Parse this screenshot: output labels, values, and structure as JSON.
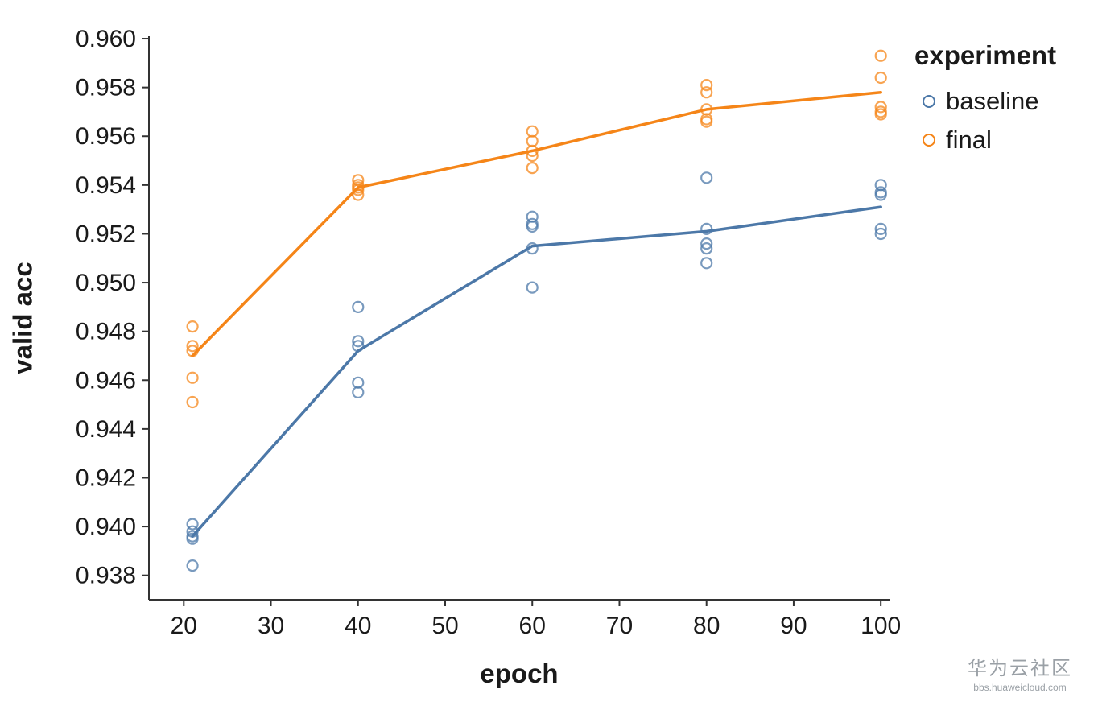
{
  "watermark": {
    "line1": "华为云社区",
    "line2": "bbs.huaweicloud.com"
  },
  "chart_data": {
    "type": "scatter",
    "title": "",
    "xlabel": "epoch",
    "ylabel": "valid acc",
    "xlim": [
      16,
      101
    ],
    "ylim": [
      0.937,
      0.9601
    ],
    "x_ticks": [
      20,
      30,
      40,
      50,
      60,
      70,
      80,
      90,
      100
    ],
    "y_ticks": [
      0.938,
      0.94,
      0.942,
      0.944,
      0.946,
      0.948,
      0.95,
      0.952,
      0.954,
      0.956,
      0.958,
      0.96
    ],
    "grid": false,
    "legend": {
      "title": "experiment",
      "position": "right",
      "entries": [
        "baseline",
        "final"
      ]
    },
    "series": [
      {
        "name": "baseline",
        "color": "#4c78a8",
        "marker": "open-circle",
        "points": [
          [
            21,
            0.9401
          ],
          [
            21,
            0.9398
          ],
          [
            21,
            0.9396
          ],
          [
            21,
            0.9395
          ],
          [
            21,
            0.9384
          ],
          [
            40,
            0.949
          ],
          [
            40,
            0.9476
          ],
          [
            40,
            0.9474
          ],
          [
            40,
            0.9459
          ],
          [
            40,
            0.9455
          ],
          [
            60,
            0.9527
          ],
          [
            60,
            0.9524
          ],
          [
            60,
            0.9523
          ],
          [
            60,
            0.9514
          ],
          [
            60,
            0.9498
          ],
          [
            80,
            0.9543
          ],
          [
            80,
            0.9522
          ],
          [
            80,
            0.9516
          ],
          [
            80,
            0.9514
          ],
          [
            80,
            0.9508
          ],
          [
            100,
            0.954
          ],
          [
            100,
            0.9537
          ],
          [
            100,
            0.9536
          ],
          [
            100,
            0.9522
          ],
          [
            100,
            0.952
          ]
        ],
        "mean_line": [
          [
            21,
            0.9396
          ],
          [
            40,
            0.9472
          ],
          [
            60,
            0.9515
          ],
          [
            80,
            0.9521
          ],
          [
            100,
            0.9531
          ]
        ]
      },
      {
        "name": "final",
        "color": "#f58518",
        "marker": "open-circle",
        "points": [
          [
            21,
            0.9482
          ],
          [
            21,
            0.9474
          ],
          [
            21,
            0.9472
          ],
          [
            21,
            0.9461
          ],
          [
            21,
            0.9451
          ],
          [
            40,
            0.9542
          ],
          [
            40,
            0.954
          ],
          [
            40,
            0.9539
          ],
          [
            40,
            0.9538
          ],
          [
            40,
            0.9536
          ],
          [
            60,
            0.9562
          ],
          [
            60,
            0.9558
          ],
          [
            60,
            0.9554
          ],
          [
            60,
            0.9552
          ],
          [
            60,
            0.9547
          ],
          [
            80,
            0.9581
          ],
          [
            80,
            0.9578
          ],
          [
            80,
            0.9571
          ],
          [
            80,
            0.9567
          ],
          [
            80,
            0.9566
          ],
          [
            100,
            0.9593
          ],
          [
            100,
            0.9584
          ],
          [
            100,
            0.9572
          ],
          [
            100,
            0.957
          ],
          [
            100,
            0.9569
          ]
        ],
        "mean_line": [
          [
            21,
            0.947
          ],
          [
            40,
            0.9539
          ],
          [
            60,
            0.9554
          ],
          [
            80,
            0.9571
          ],
          [
            100,
            0.9578
          ]
        ]
      }
    ]
  }
}
